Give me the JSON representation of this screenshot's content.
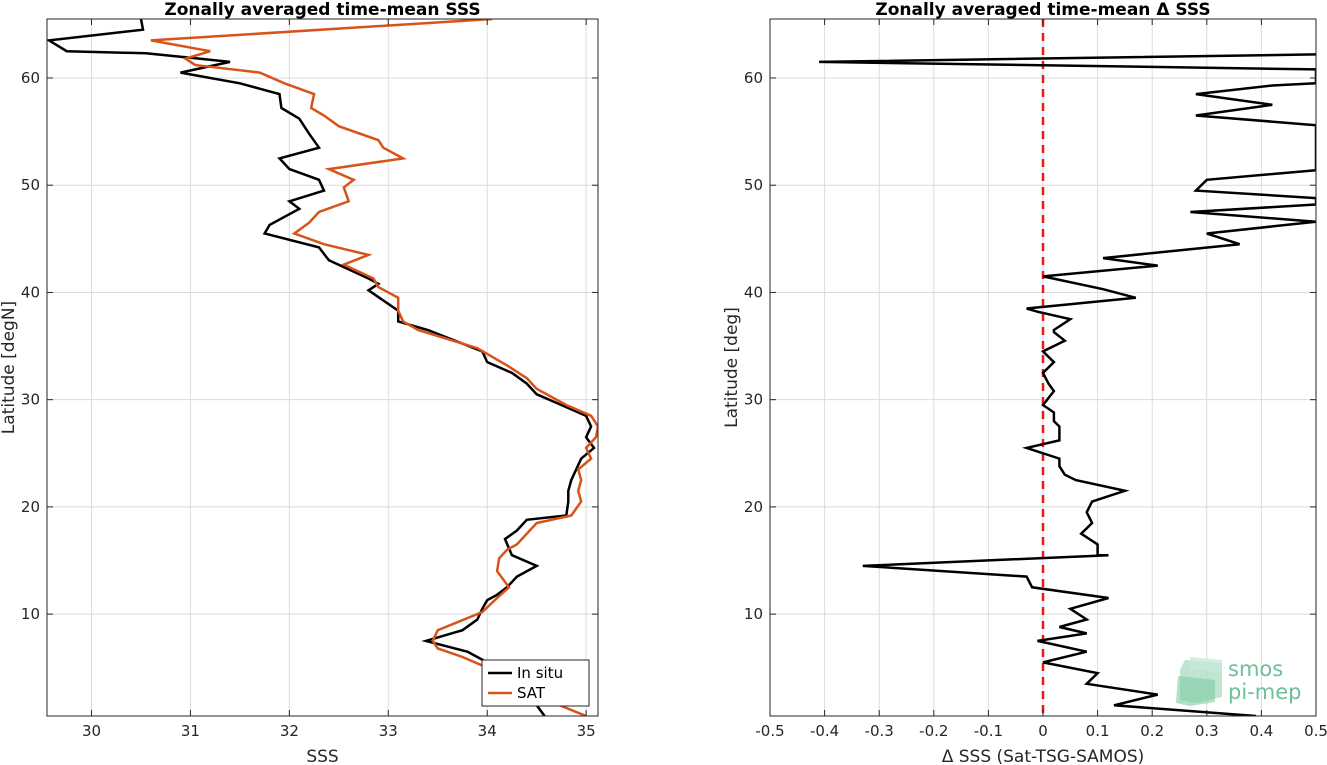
{
  "chart_data": [
    {
      "type": "line",
      "title": "Zonally averaged time-mean SSS",
      "xlabel": "SSS",
      "ylabel": "Latitude [degN]",
      "xlim": [
        29.55,
        35.12
      ],
      "ylim": [
        0.5,
        65.5
      ],
      "xticks": [
        30,
        31,
        32,
        33,
        34,
        35
      ],
      "yticks": [
        10,
        20,
        30,
        40,
        50,
        60
      ],
      "grid": true,
      "legend": {
        "position": "bottom-right",
        "entries": [
          "In situ",
          "SAT"
        ]
      },
      "series": [
        {
          "name": "In situ",
          "color": "#000000",
          "points": [
            [
              30.5,
              65.5
            ],
            [
              30.52,
              64.5
            ],
            [
              29.57,
              63.5
            ],
            [
              29.75,
              62.5
            ],
            [
              30.55,
              62.3
            ],
            [
              31.1,
              61.8
            ],
            [
              31.4,
              61.5
            ],
            [
              30.9,
              60.5
            ],
            [
              31.5,
              59.5
            ],
            [
              31.9,
              58.5
            ],
            [
              31.92,
              57.2
            ],
            [
              32.1,
              56.2
            ],
            [
              32.2,
              54.8
            ],
            [
              32.3,
              53.5
            ],
            [
              31.9,
              52.5
            ],
            [
              32.0,
              51.5
            ],
            [
              32.3,
              50.5
            ],
            [
              32.35,
              49.5
            ],
            [
              32.0,
              48.5
            ],
            [
              32.1,
              47.8
            ],
            [
              32.0,
              47.3
            ],
            [
              31.8,
              46.3
            ],
            [
              31.75,
              45.5
            ],
            [
              32.3,
              44.2
            ],
            [
              32.4,
              43.0
            ],
            [
              32.8,
              41.3
            ],
            [
              32.9,
              40.8
            ],
            [
              32.8,
              40.2
            ],
            [
              33.1,
              38.3
            ],
            [
              33.1,
              37.3
            ],
            [
              33.4,
              36.5
            ],
            [
              33.95,
              34.5
            ],
            [
              34.0,
              33.5
            ],
            [
              34.25,
              32.5
            ],
            [
              34.4,
              31.5
            ],
            [
              34.5,
              30.5
            ],
            [
              34.75,
              29.5
            ],
            [
              35.0,
              28.5
            ],
            [
              35.05,
              27.5
            ],
            [
              35.0,
              26.5
            ],
            [
              35.08,
              25.5
            ],
            [
              34.95,
              24.5
            ],
            [
              34.9,
              23.5
            ],
            [
              34.85,
              22.5
            ],
            [
              34.82,
              21.5
            ],
            [
              34.82,
              20.5
            ],
            [
              34.8,
              19.2
            ],
            [
              34.4,
              18.8
            ],
            [
              34.3,
              17.8
            ],
            [
              34.18,
              17.0
            ],
            [
              34.25,
              15.5
            ],
            [
              34.5,
              14.5
            ],
            [
              34.3,
              13.5
            ],
            [
              34.2,
              12.5
            ],
            [
              34.1,
              11.8
            ],
            [
              34.0,
              11.3
            ],
            [
              33.95,
              10.5
            ],
            [
              33.9,
              9.5
            ],
            [
              33.75,
              8.5
            ],
            [
              33.38,
              7.5
            ],
            [
              33.8,
              6.5
            ],
            [
              34.0,
              5.5
            ],
            [
              34.25,
              4.5
            ],
            [
              34.4,
              3.5
            ],
            [
              34.55,
              3.0
            ],
            [
              34.45,
              2.5
            ],
            [
              34.5,
              1.5
            ],
            [
              34.58,
              0.5
            ]
          ]
        },
        {
          "name": "SAT",
          "color": "#d95319",
          "points": [
            [
              34.05,
              65.5
            ],
            [
              30.6,
              63.5
            ],
            [
              31.2,
              62.5
            ],
            [
              30.95,
              61.8
            ],
            [
              31.05,
              61.2
            ],
            [
              31.7,
              60.5
            ],
            [
              31.95,
              59.5
            ],
            [
              32.25,
              58.5
            ],
            [
              32.22,
              57.2
            ],
            [
              32.35,
              56.5
            ],
            [
              32.5,
              55.5
            ],
            [
              32.9,
              54.2
            ],
            [
              32.95,
              53.5
            ],
            [
              33.15,
              52.5
            ],
            [
              32.4,
              51.5
            ],
            [
              32.65,
              50.5
            ],
            [
              32.55,
              49.8
            ],
            [
              32.6,
              48.5
            ],
            [
              32.3,
              47.5
            ],
            [
              32.2,
              46.5
            ],
            [
              32.05,
              45.5
            ],
            [
              32.35,
              44.5
            ],
            [
              32.8,
              43.5
            ],
            [
              32.55,
              42.6
            ],
            [
              32.85,
              41.3
            ],
            [
              32.9,
              40.5
            ],
            [
              33.1,
              39.5
            ],
            [
              33.1,
              38.3
            ],
            [
              33.15,
              37.3
            ],
            [
              33.3,
              36.5
            ],
            [
              33.9,
              34.8
            ],
            [
              34.05,
              34.0
            ],
            [
              34.2,
              33.2
            ],
            [
              34.4,
              32.0
            ],
            [
              34.5,
              31.0
            ],
            [
              34.8,
              29.5
            ],
            [
              35.05,
              28.5
            ],
            [
              35.12,
              27.5
            ],
            [
              35.1,
              26.5
            ],
            [
              35.0,
              25.5
            ],
            [
              35.05,
              24.5
            ],
            [
              34.92,
              23.5
            ],
            [
              34.95,
              22.5
            ],
            [
              34.92,
              21.5
            ],
            [
              34.95,
              20.5
            ],
            [
              34.85,
              19.2
            ],
            [
              34.5,
              18.5
            ],
            [
              34.4,
              17.5
            ],
            [
              34.3,
              16.5
            ],
            [
              34.2,
              16.0
            ],
            [
              34.12,
              15.2
            ],
            [
              34.1,
              14.0
            ],
            [
              34.22,
              12.5
            ],
            [
              34.1,
              11.5
            ],
            [
              33.95,
              10.2
            ],
            [
              33.5,
              8.5
            ],
            [
              33.45,
              7.5
            ],
            [
              33.5,
              6.8
            ],
            [
              33.75,
              6.0
            ],
            [
              34.0,
              5.0
            ],
            [
              34.6,
              3.5
            ],
            [
              34.65,
              3.0
            ],
            [
              34.55,
              2.5
            ],
            [
              34.6,
              2.0
            ],
            [
              35.0,
              0.5
            ]
          ]
        }
      ]
    },
    {
      "type": "line",
      "title": "Zonally averaged time-mean Δ SSS",
      "xlabel": "Δ SSS (Sat-TSG-SAMOS)",
      "ylabel": "Latitude [deg]",
      "xlim": [
        -0.5,
        0.5
      ],
      "ylim": [
        0.5,
        65.5
      ],
      "xticks": [
        -0.5,
        -0.4,
        -0.3,
        -0.2,
        -0.1,
        0,
        0.1,
        0.2,
        0.3,
        0.4,
        0.5
      ],
      "yticks": [
        10,
        20,
        30,
        40,
        50,
        60
      ],
      "grid": true,
      "reference_line": {
        "x": 0,
        "color": "#e41a1c",
        "style": "dashed"
      },
      "series": [
        {
          "name": "",
          "color": "#000000",
          "points": [
            [
              0.5,
              62.2
            ],
            [
              -0.41,
              61.5
            ],
            [
              0.5,
              60.8
            ],
            [
              0.5,
              59.5
            ],
            [
              0.42,
              59.3
            ],
            [
              0.28,
              58.5
            ],
            [
              0.42,
              57.5
            ],
            [
              0.28,
              56.5
            ],
            [
              0.5,
              55.6
            ],
            [
              0.5,
              51.4
            ],
            [
              0.3,
              50.5
            ],
            [
              0.28,
              49.5
            ],
            [
              0.5,
              48.8
            ],
            [
              0.5,
              48.2
            ],
            [
              0.27,
              47.5
            ],
            [
              0.5,
              46.6
            ],
            [
              0.3,
              45.5
            ],
            [
              0.36,
              44.5
            ],
            [
              0.11,
              43.2
            ],
            [
              0.21,
              42.5
            ],
            [
              0.0,
              41.5
            ],
            [
              0.11,
              40.3
            ],
            [
              0.17,
              39.5
            ],
            [
              -0.03,
              38.5
            ],
            [
              -0.01,
              38.2
            ],
            [
              0.05,
              37.5
            ],
            [
              0.02,
              36.5
            ],
            [
              0.02,
              36.3
            ],
            [
              0.04,
              35.5
            ],
            [
              0.0,
              34.5
            ],
            [
              0.02,
              33.5
            ],
            [
              0.0,
              32.5
            ],
            [
              0.01,
              31.5
            ],
            [
              0.02,
              30.8
            ],
            [
              0.0,
              29.5
            ],
            [
              0.02,
              28.8
            ],
            [
              0.02,
              28.0
            ],
            [
              0.03,
              27.5
            ],
            [
              0.03,
              26.2
            ],
            [
              -0.03,
              25.5
            ],
            [
              0.03,
              24.5
            ],
            [
              0.03,
              23.8
            ],
            [
              0.04,
              23.0
            ],
            [
              0.06,
              22.5
            ],
            [
              0.15,
              21.5
            ],
            [
              0.09,
              20.5
            ],
            [
              0.08,
              19.5
            ],
            [
              0.09,
              18.5
            ],
            [
              0.07,
              17.5
            ],
            [
              0.1,
              16.5
            ],
            [
              0.1,
              15.5
            ],
            [
              0.12,
              15.5
            ],
            [
              -0.33,
              14.5
            ],
            [
              -0.03,
              13.5
            ],
            [
              -0.02,
              12.5
            ],
            [
              0.12,
              11.5
            ],
            [
              0.05,
              10.5
            ],
            [
              0.08,
              9.5
            ],
            [
              0.03,
              8.8
            ],
            [
              0.08,
              8.2
            ],
            [
              -0.01,
              7.5
            ],
            [
              0.08,
              6.5
            ],
            [
              0.0,
              5.5
            ],
            [
              0.1,
              4.5
            ],
            [
              0.08,
              3.5
            ],
            [
              0.21,
              2.5
            ],
            [
              0.13,
              1.5
            ],
            [
              0.39,
              0.5
            ]
          ]
        }
      ]
    }
  ],
  "logo": {
    "line1": "smos",
    "line2": "pi-mep",
    "color": "#6fbf98"
  }
}
